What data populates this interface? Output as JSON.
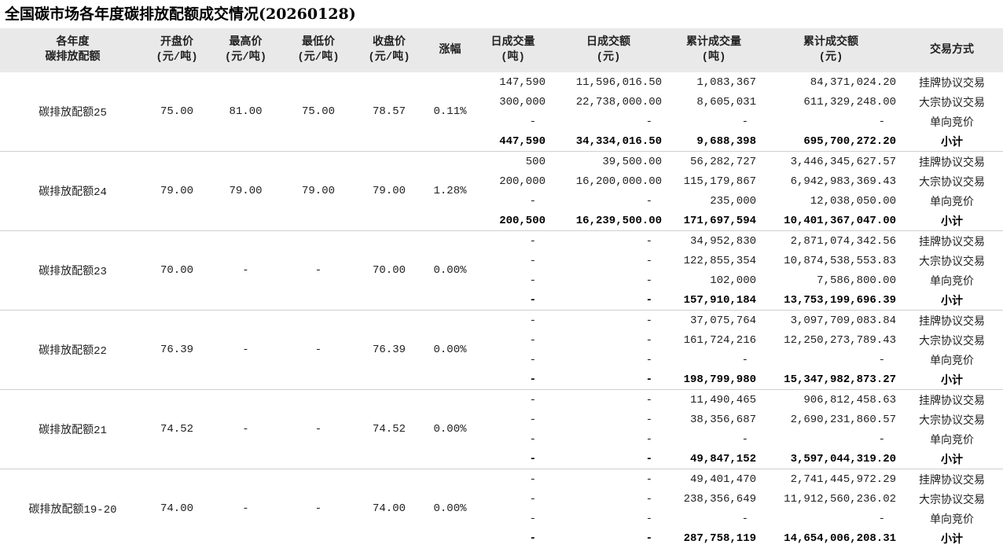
{
  "title": "全国碳市场各年度碳排放配额成交情况(20260128)",
  "headers": [
    [
      "各年度",
      "碳排放配额"
    ],
    [
      "开盘价",
      "(元/吨)"
    ],
    [
      "最高价",
      "(元/吨)"
    ],
    [
      "最低价",
      "(元/吨)"
    ],
    [
      "收盘价",
      "(元/吨)"
    ],
    [
      "涨幅"
    ],
    [
      "日成交量",
      "(吨)"
    ],
    [
      "日成交额",
      "(元)"
    ],
    [
      "累计成交量",
      "(吨)"
    ],
    [
      "累计成交额",
      "(元)"
    ],
    [
      "交易方式"
    ]
  ],
  "groups": [
    {
      "name": "碳排放配额25",
      "open": "75.00",
      "high": "81.00",
      "low": "75.00",
      "close": "78.57",
      "change": "0.11%",
      "rows": [
        [
          "147,590",
          "11,596,016.50",
          "1,083,367",
          "84,371,024.20",
          "挂牌协议交易"
        ],
        [
          "300,000",
          "22,738,000.00",
          "8,605,031",
          "611,329,248.00",
          "大宗协议交易"
        ],
        [
          "-",
          "-",
          "-",
          "-",
          "单向竞价"
        ],
        [
          "447,590",
          "34,334,016.50",
          "9,688,398",
          "695,700,272.20",
          "小计"
        ]
      ]
    },
    {
      "name": "碳排放配额24",
      "open": "79.00",
      "high": "79.00",
      "low": "79.00",
      "close": "79.00",
      "change": "1.28%",
      "rows": [
        [
          "500",
          "39,500.00",
          "56,282,727",
          "3,446,345,627.57",
          "挂牌协议交易"
        ],
        [
          "200,000",
          "16,200,000.00",
          "115,179,867",
          "6,942,983,369.43",
          "大宗协议交易"
        ],
        [
          "-",
          "-",
          "235,000",
          "12,038,050.00",
          "单向竞价"
        ],
        [
          "200,500",
          "16,239,500.00",
          "171,697,594",
          "10,401,367,047.00",
          "小计"
        ]
      ]
    },
    {
      "name": "碳排放配额23",
      "open": "70.00",
      "high": "-",
      "low": "-",
      "close": "70.00",
      "change": "0.00%",
      "rows": [
        [
          "-",
          "-",
          "34,952,830",
          "2,871,074,342.56",
          "挂牌协议交易"
        ],
        [
          "-",
          "-",
          "122,855,354",
          "10,874,538,553.83",
          "大宗协议交易"
        ],
        [
          "-",
          "-",
          "102,000",
          "7,586,800.00",
          "单向竞价"
        ],
        [
          "-",
          "-",
          "157,910,184",
          "13,753,199,696.39",
          "小计"
        ]
      ]
    },
    {
      "name": "碳排放配额22",
      "open": "76.39",
      "high": "-",
      "low": "-",
      "close": "76.39",
      "change": "0.00%",
      "rows": [
        [
          "-",
          "-",
          "37,075,764",
          "3,097,709,083.84",
          "挂牌协议交易"
        ],
        [
          "-",
          "-",
          "161,724,216",
          "12,250,273,789.43",
          "大宗协议交易"
        ],
        [
          "-",
          "-",
          "-",
          "-",
          "单向竞价"
        ],
        [
          "-",
          "-",
          "198,799,980",
          "15,347,982,873.27",
          "小计"
        ]
      ]
    },
    {
      "name": "碳排放配额21",
      "open": "74.52",
      "high": "-",
      "low": "-",
      "close": "74.52",
      "change": "0.00%",
      "rows": [
        [
          "-",
          "-",
          "11,490,465",
          "906,812,458.63",
          "挂牌协议交易"
        ],
        [
          "-",
          "-",
          "38,356,687",
          "2,690,231,860.57",
          "大宗协议交易"
        ],
        [
          "-",
          "-",
          "-",
          "-",
          "单向竞价"
        ],
        [
          "-",
          "-",
          "49,847,152",
          "3,597,044,319.20",
          "小计"
        ]
      ]
    },
    {
      "name": "碳排放配额19-20",
      "open": "74.00",
      "high": "-",
      "low": "-",
      "close": "74.00",
      "change": "0.00%",
      "rows": [
        [
          "-",
          "-",
          "49,401,470",
          "2,741,445,972.29",
          "挂牌协议交易"
        ],
        [
          "-",
          "-",
          "238,356,649",
          "11,912,560,236.02",
          "大宗协议交易"
        ],
        [
          "-",
          "-",
          "-",
          "-",
          "单向竞价"
        ],
        [
          "-",
          "-",
          "287,758,119",
          "14,654,006,208.31",
          "小计"
        ]
      ]
    }
  ]
}
